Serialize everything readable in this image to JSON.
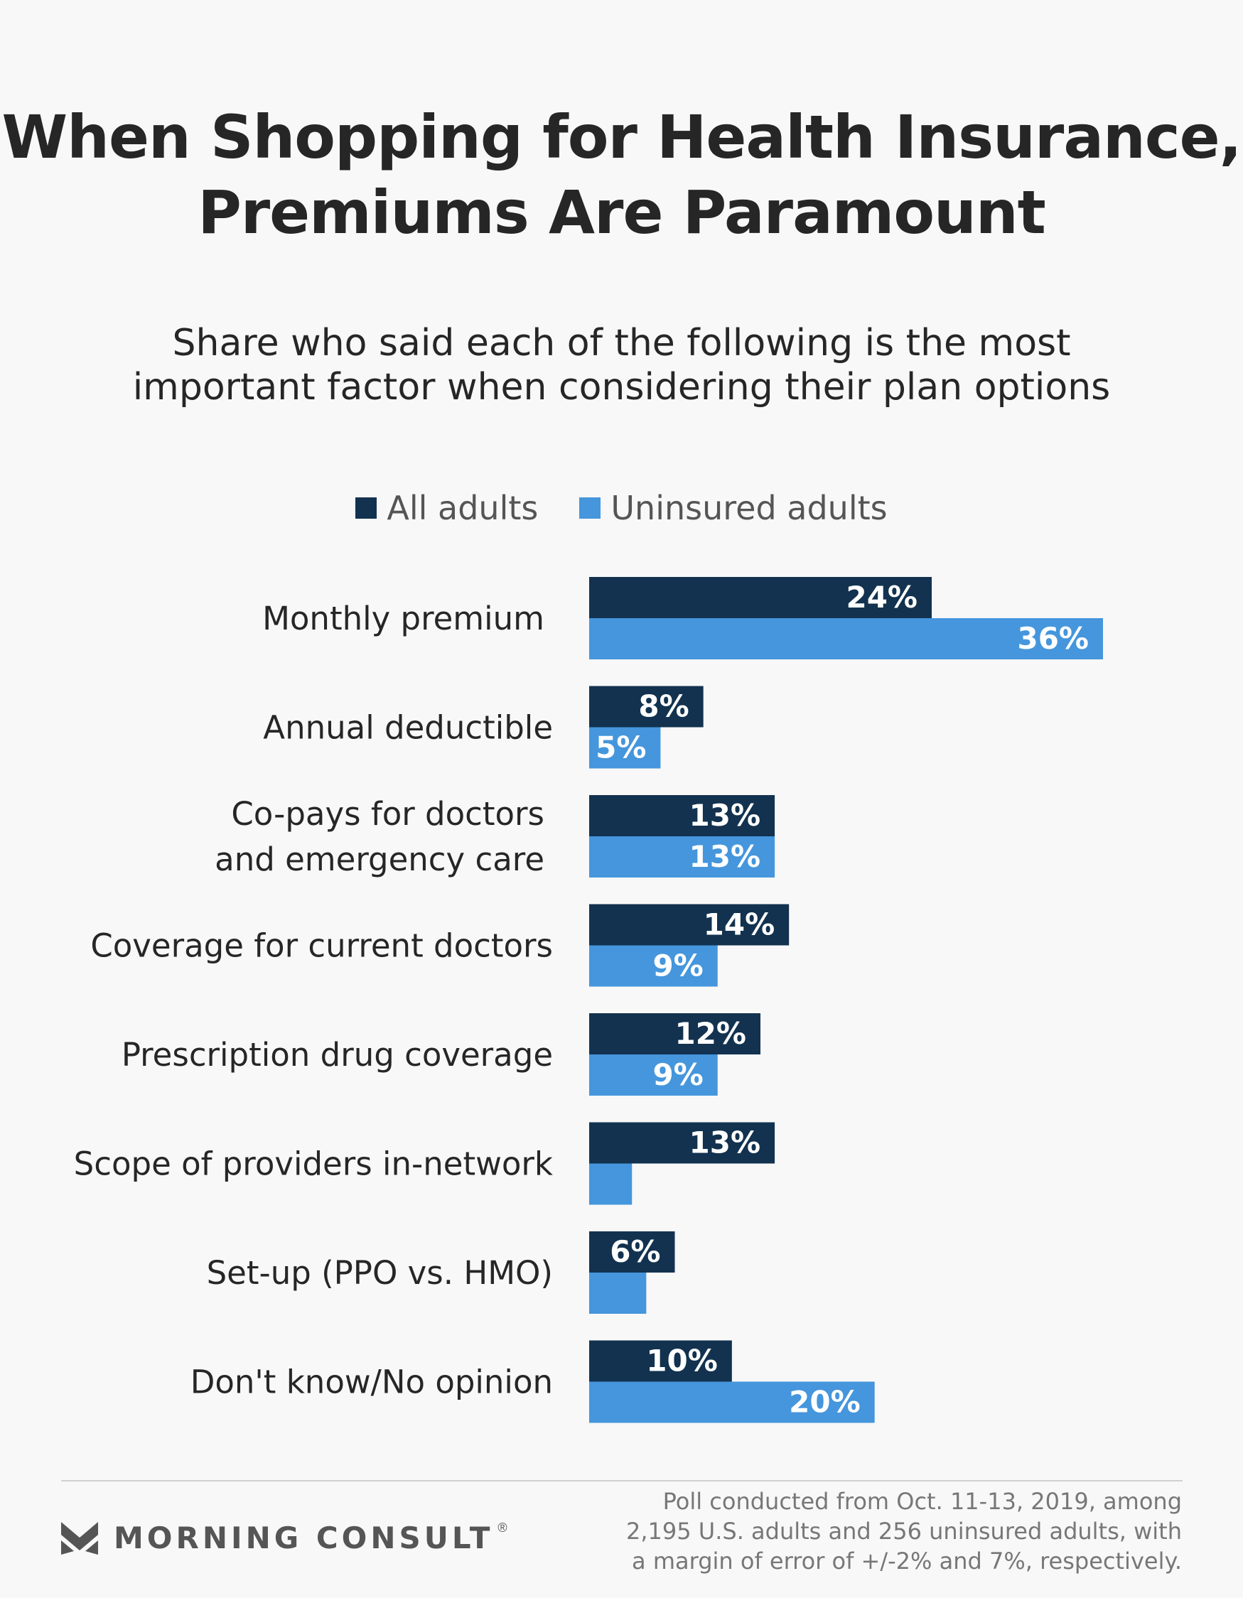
{
  "title_lines": [
    "When Shopping for Health Insurance,",
    "Premiums Are Paramount"
  ],
  "subtitle_lines": [
    "Share who said each of the following is the most",
    "important factor when considering their plan options"
  ],
  "legend": [
    {
      "label": "All adults",
      "color": "#12324f"
    },
    {
      "label": "Uninsured adults",
      "color": "#4596dc"
    }
  ],
  "chart_data": {
    "type": "bar",
    "orientation": "horizontal",
    "title": "When Shopping for Health Insurance, Premiums Are Paramount",
    "subtitle": "Share who said each of the following is the most important factor when considering their plan options",
    "categories": [
      "Monthly premium",
      "Annual deductible",
      "Co-pays for doctors and emergency care",
      "Coverage for current doctors",
      "Prescription drug coverage",
      "Scope of providers in-network",
      "Set-up (PPO vs. HMO)",
      "Don't know/No opinion"
    ],
    "category_lines": [
      [
        "Monthly premium"
      ],
      [
        "Annual deductible"
      ],
      [
        "Co-pays for doctors",
        "and emergency care"
      ],
      [
        "Coverage for current doctors"
      ],
      [
        "Prescription drug coverage"
      ],
      [
        "Scope of providers in-network"
      ],
      [
        "Set-up (PPO vs. HMO)"
      ],
      [
        "Don't know/No opinion"
      ]
    ],
    "series": [
      {
        "name": "All adults",
        "color": "#12324f",
        "values": [
          24,
          8,
          13,
          14,
          12,
          13,
          6,
          10
        ],
        "labels": [
          "24%",
          "8%",
          "13%",
          "14%",
          "12%",
          "13%",
          "6%",
          "10%"
        ]
      },
      {
        "name": "Uninsured adults",
        "color": "#4596dc",
        "values": [
          36,
          5,
          13,
          9,
          9,
          3,
          4,
          20
        ],
        "labels": [
          "36%",
          "5%",
          "13%",
          "9%",
          "9%",
          "",
          "",
          "20%"
        ]
      }
    ],
    "xlim": [
      0,
      36
    ],
    "grid": false,
    "legend_position": "top"
  },
  "footnote_lines": [
    "Poll conducted from Oct. 11-13, 2019, among",
    "2,195 U.S. adults and 256 uninsured adults, with",
    "a margin of error of +/-2% and 7%, respectively."
  ],
  "brand": {
    "name": "MORNING CONSULT",
    "mark": "®",
    "logo_icon": "morning-consult-logo-icon",
    "color": "#555555"
  }
}
